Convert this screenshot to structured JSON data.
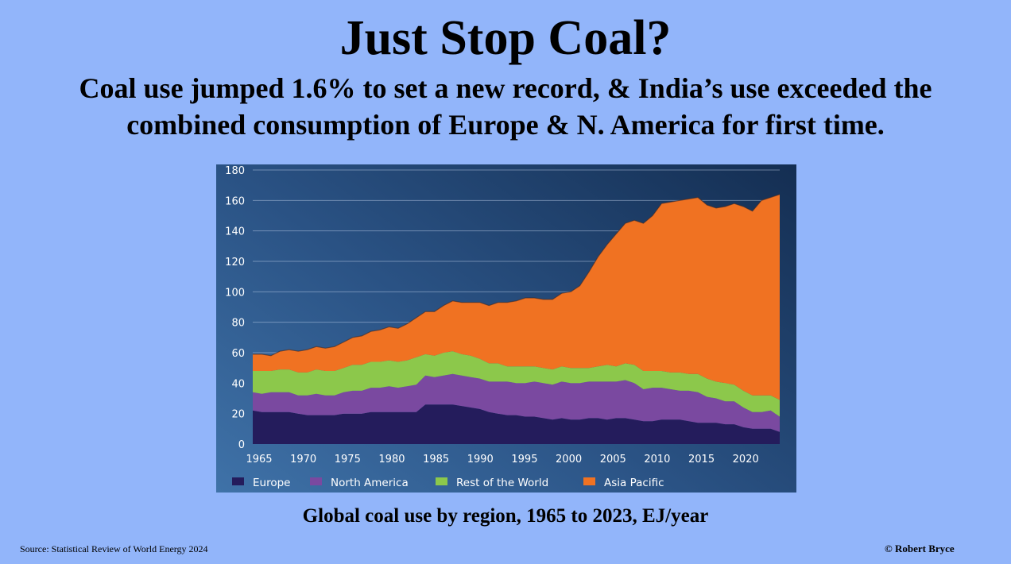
{
  "title": "Just Stop Coal?",
  "subtitle_line1": "Coal use jumped 1.6% to set a new record, & India’s use exceeded the",
  "subtitle_line2": "combined consumption of Europe & N. America for first time.",
  "caption": "Global coal use by region, 1965 to 2023, EJ/year",
  "source": "Source: Statistical Review of World Energy  2024",
  "credit": "© Robert Bryce",
  "chart_data": {
    "type": "area",
    "stacked": true,
    "title": "Global coal use by region, 1965 to 2023, EJ/year",
    "xlabel": "",
    "ylabel": "EJ/year",
    "ylim": [
      0,
      180
    ],
    "yticks": [
      0,
      20,
      40,
      60,
      80,
      100,
      120,
      140,
      160,
      180
    ],
    "xticks": [
      1965,
      1970,
      1975,
      1980,
      1985,
      1990,
      1995,
      2000,
      2005,
      2010,
      2015,
      2020
    ],
    "grid": true,
    "legend_position": "bottom",
    "x_start": 1965,
    "x_end": 2023,
    "series": [
      {
        "name": "Europe",
        "color": "#241c5c",
        "values": [
          22,
          21,
          21,
          21,
          21,
          20,
          19,
          19,
          19,
          19,
          20,
          20,
          20,
          21,
          21,
          21,
          21,
          21,
          21,
          26,
          26,
          26,
          26,
          25,
          24,
          23,
          21,
          20,
          19,
          19,
          18,
          18,
          17,
          16,
          17,
          16,
          16,
          17,
          17,
          16,
          17,
          17,
          16,
          15,
          15,
          16,
          16,
          16,
          15,
          14,
          14,
          14,
          13,
          13,
          11,
          10,
          10,
          10,
          8
        ]
      },
      {
        "name": "North America",
        "color": "#7a49a0",
        "values": [
          12,
          12,
          13,
          13,
          13,
          12,
          13,
          14,
          13,
          13,
          14,
          15,
          15,
          16,
          16,
          17,
          16,
          17,
          18,
          19,
          18,
          19,
          20,
          20,
          20,
          20,
          20,
          21,
          22,
          21,
          22,
          23,
          23,
          23,
          24,
          24,
          24,
          24,
          24,
          25,
          24,
          25,
          24,
          21,
          22,
          21,
          20,
          19,
          20,
          20,
          17,
          16,
          15,
          15,
          13,
          11,
          11,
          12,
          10
        ]
      },
      {
        "name": "Rest of the World",
        "color": "#8cc84b",
        "values": [
          14,
          15,
          14,
          15,
          15,
          15,
          15,
          16,
          16,
          16,
          16,
          17,
          17,
          17,
          17,
          17,
          17,
          17,
          18,
          14,
          14,
          15,
          15,
          14,
          14,
          13,
          12,
          12,
          10,
          11,
          11,
          10,
          10,
          10,
          10,
          10,
          10,
          9,
          10,
          11,
          10,
          11,
          12,
          12,
          11,
          11,
          11,
          12,
          11,
          12,
          12,
          11,
          12,
          11,
          11,
          11,
          11,
          10,
          11
        ]
      },
      {
        "name": "Asia Pacific",
        "color": "#f07222",
        "values": [
          11,
          11,
          10,
          12,
          13,
          14,
          15,
          15,
          15,
          16,
          17,
          18,
          19,
          20,
          21,
          22,
          22,
          24,
          26,
          28,
          29,
          31,
          33,
          34,
          35,
          37,
          38,
          40,
          42,
          43,
          45,
          45,
          45,
          46,
          48,
          50,
          54,
          63,
          72,
          79,
          87,
          92,
          95,
          97,
          102,
          110,
          112,
          113,
          115,
          116,
          114,
          114,
          116,
          119,
          121,
          121,
          128,
          130,
          135
        ]
      }
    ]
  }
}
